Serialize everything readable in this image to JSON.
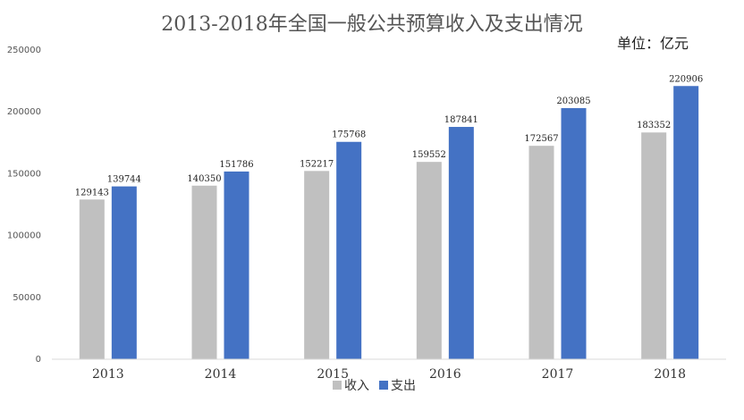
{
  "chart_data": {
    "type": "bar",
    "title": "2013-2018年全国一般公共预算收入及支出情况",
    "unit": "单位：亿元",
    "categories": [
      "2013",
      "2014",
      "2015",
      "2016",
      "2017",
      "2018"
    ],
    "series": [
      {
        "name": "收入",
        "color": "#c0c0c0",
        "values": [
          129143,
          140350,
          152217,
          159552,
          172567,
          183352
        ]
      },
      {
        "name": "支出",
        "color": "#4472c4",
        "values": [
          139744,
          151786,
          175768,
          187841,
          203085,
          220906
        ]
      }
    ],
    "ylim": [
      0,
      250000
    ],
    "yticks": [
      "0",
      "50000",
      "100000",
      "150000",
      "200000",
      "250000"
    ],
    "grid": false,
    "legend_position": "bottom"
  }
}
